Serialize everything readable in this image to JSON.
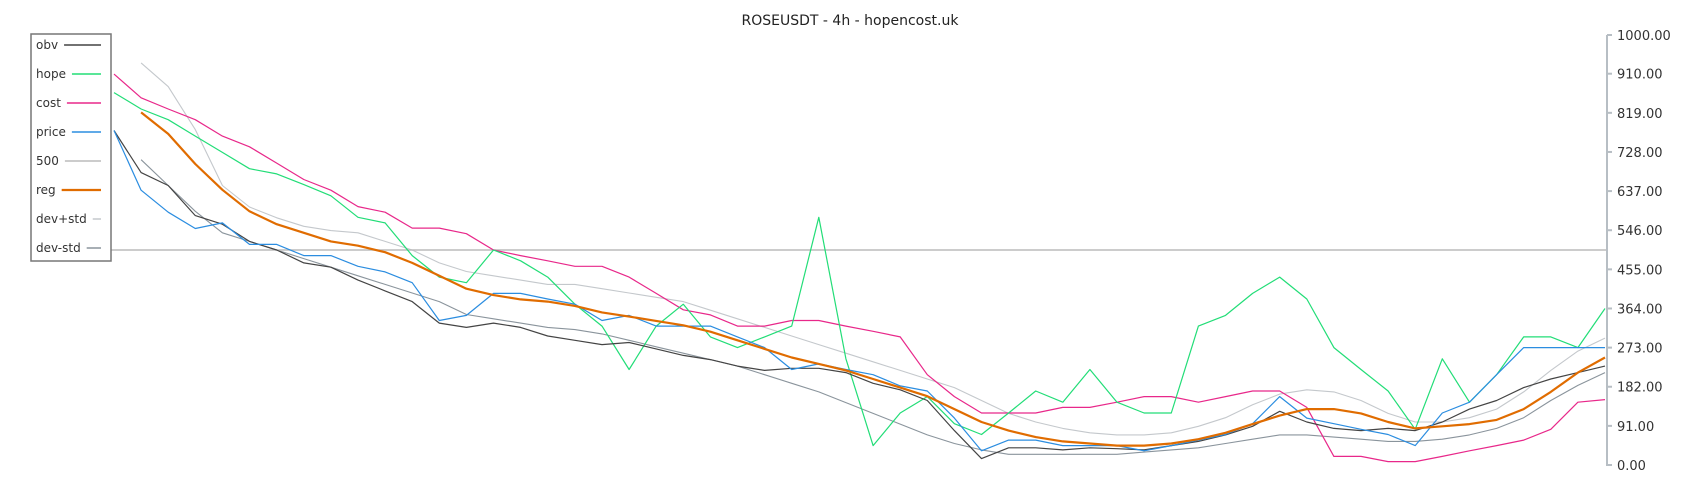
{
  "chart_data": {
    "type": "line",
    "title": "ROSEUSDT - 4h - hopencost.uk",
    "ylim": [
      0,
      1000
    ],
    "yticks": [
      "0.00",
      "91.00",
      "182.00",
      "273.00",
      "364.00",
      "455.00",
      "546.00",
      "637.00",
      "728.00",
      "819.00",
      "910.00",
      "1000.00"
    ],
    "ytick_values": [
      0,
      91,
      182,
      273,
      364,
      455,
      546,
      637,
      728,
      819,
      910,
      1000
    ],
    "y_axis_side": "right",
    "grid": false,
    "legend_placement": "top-left",
    "series": [
      {
        "name": "obv",
        "color": "#444444",
        "width": 1.2,
        "values": [
          778,
          680,
          650,
          580,
          560,
          520,
          500,
          470,
          460,
          430,
          405,
          380,
          330,
          320,
          330,
          320,
          300,
          290,
          280,
          285,
          270,
          255,
          245,
          230,
          220,
          225,
          225,
          215,
          190,
          175,
          150,
          80,
          15,
          40,
          40,
          35,
          40,
          38,
          35,
          45,
          55,
          70,
          90,
          125,
          100,
          85,
          80,
          85,
          80,
          100,
          130,
          150,
          180,
          200,
          215,
          230
        ]
      },
      {
        "name": "hope",
        "color": "#22dd77",
        "width": 1.2,
        "values": [
          866,
          828,
          803,
          765,
          727,
          689,
          677,
          652,
          626,
          576,
          563,
          487,
          437,
          424,
          500,
          475,
          437,
          374,
          323,
          222,
          323,
          374,
          298,
          273,
          298,
          323,
          576,
          247,
          45,
          121,
          159,
          96,
          71,
          121,
          172,
          146,
          222,
          146,
          121,
          121,
          323,
          348,
          399,
          437,
          386,
          273,
          222,
          172,
          83,
          247,
          146,
          210,
          298,
          298,
          273,
          364
        ]
      },
      {
        "name": "cost",
        "color": "#e8288a",
        "width": 1.2,
        "values": [
          909,
          854,
          828,
          803,
          765,
          740,
          702,
          664,
          639,
          601,
          588,
          551,
          551,
          538,
          500,
          487,
          475,
          462,
          462,
          437,
          399,
          361,
          349,
          323,
          323,
          336,
          336,
          323,
          311,
          298,
          210,
          159,
          121,
          121,
          121,
          134,
          134,
          146,
          159,
          159,
          146,
          159,
          172,
          172,
          134,
          20,
          20,
          8,
          8,
          20,
          33,
          45,
          58,
          83,
          146,
          152
        ]
      },
      {
        "name": "price",
        "color": "#2b8de0",
        "width": 1.2,
        "values": [
          778,
          639,
          588,
          550,
          563,
          513,
          513,
          487,
          487,
          462,
          449,
          424,
          336,
          348,
          399,
          399,
          386,
          374,
          336,
          348,
          323,
          323,
          323,
          298,
          273,
          222,
          235,
          222,
          210,
          184,
          172,
          109,
          33,
          58,
          58,
          45,
          45,
          45,
          33,
          45,
          58,
          71,
          96,
          159,
          109,
          96,
          83,
          71,
          45,
          121,
          146,
          210,
          273,
          273,
          273,
          273
        ]
      },
      {
        "name": "500",
        "color": "#bbbbbb",
        "width": 1.5,
        "constant": 500
      },
      {
        "name": "reg",
        "color": "#e06c00",
        "width": 2.2,
        "values": [
          null,
          820,
          770,
          700,
          640,
          590,
          560,
          540,
          520,
          510,
          495,
          470,
          440,
          410,
          395,
          385,
          380,
          370,
          355,
          345,
          335,
          325,
          310,
          290,
          270,
          250,
          235,
          220,
          200,
          180,
          160,
          130,
          100,
          80,
          65,
          55,
          50,
          45,
          45,
          50,
          60,
          75,
          95,
          115,
          130,
          130,
          120,
          100,
          85,
          90,
          95,
          105,
          130,
          170,
          215,
          250
        ]
      },
      {
        "name": "dev+std",
        "color": "#c4c8cc",
        "width": 1.1,
        "values": [
          null,
          935,
          880,
          780,
          650,
          600,
          575,
          555,
          545,
          540,
          520,
          500,
          470,
          450,
          440,
          430,
          420,
          420,
          410,
          400,
          390,
          380,
          360,
          340,
          320,
          300,
          280,
          260,
          240,
          220,
          200,
          180,
          150,
          120,
          100,
          85,
          75,
          70,
          70,
          75,
          90,
          110,
          140,
          165,
          175,
          170,
          150,
          120,
          100,
          100,
          110,
          130,
          170,
          220,
          265,
          295
        ]
      },
      {
        "name": "dev-std",
        "color": "#8a949c",
        "width": 1.1,
        "values": [
          null,
          710,
          650,
          590,
          540,
          520,
          500,
          480,
          460,
          440,
          420,
          400,
          380,
          350,
          340,
          330,
          320,
          315,
          305,
          290,
          275,
          260,
          245,
          230,
          210,
          190,
          170,
          145,
          120,
          95,
          70,
          50,
          35,
          25,
          25,
          25,
          25,
          25,
          30,
          35,
          40,
          50,
          60,
          70,
          70,
          65,
          60,
          55,
          55,
          60,
          70,
          85,
          110,
          150,
          185,
          215
        ]
      }
    ]
  }
}
